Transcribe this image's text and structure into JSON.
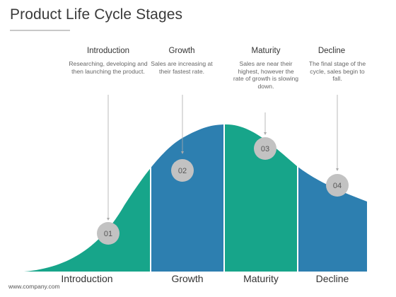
{
  "title": "Product Life Cycle Stages",
  "stages": [
    {
      "number": "01",
      "heading": "Introduction",
      "description": "Researching, developing and then launching the product.",
      "axis_label": "Introduction",
      "color": "#17a58a"
    },
    {
      "number": "02",
      "heading": "Growth",
      "description": "Sales are increasing at their fastest rate.",
      "axis_label": "Growth",
      "color": "#2d7fb0"
    },
    {
      "number": "03",
      "heading": "Maturity",
      "description": "Sales are near their highest, however the rate of growth is slowing down.",
      "axis_label": "Maturity",
      "color": "#17a58a"
    },
    {
      "number": "04",
      "heading": "Decline",
      "description": "The final stage of the cycle, sales begin to fall.",
      "axis_label": "Decline",
      "color": "#2d7fb0"
    }
  ],
  "footer": "www.company.com",
  "colors": {
    "teal": "#17a58a",
    "blue": "#2d7fb0",
    "marker": "#c2c2c2",
    "leader_line": "#aaaaaa"
  }
}
